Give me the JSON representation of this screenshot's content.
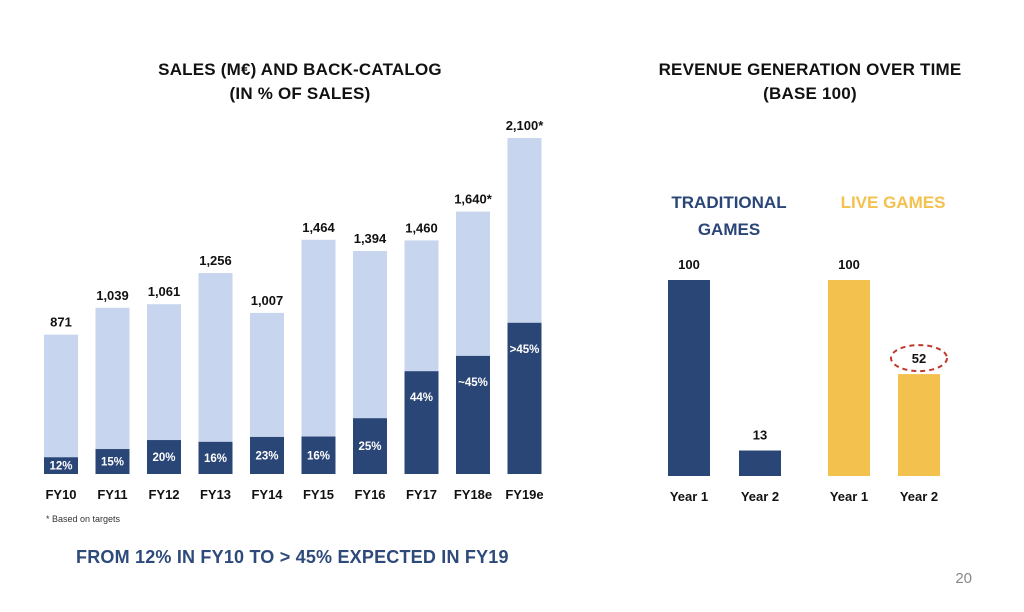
{
  "colors": {
    "light_blue": "#c7d6ee",
    "navy": "#2a4676",
    "gold": "#f3c14e",
    "red_dashed": "#c0392b",
    "text_dark": "#111111"
  },
  "chart_data": [
    {
      "type": "bar",
      "stacked": true,
      "title": "SALES (M€) AND BACK-CATALOG",
      "subtitle": "(IN % OF SALES)",
      "categories": [
        "FY10",
        "FY11",
        "FY12",
        "FY13",
        "FY14",
        "FY15",
        "FY16",
        "FY17",
        "FY18e",
        "FY19e"
      ],
      "total_labels": [
        "871",
        "1,039",
        "1,061",
        "1,256",
        "1,007",
        "1,464",
        "1,394",
        "1,460",
        "1,640*",
        "2,100*"
      ],
      "totals": [
        871,
        1039,
        1061,
        1256,
        1007,
        1464,
        1394,
        1460,
        1640,
        2100
      ],
      "back_catalog_labels": [
        "12%",
        "15%",
        "20%",
        "16%",
        "23%",
        "16%",
        "25%",
        "44%",
        "~45%",
        ">45%"
      ],
      "back_catalog_share": [
        0.12,
        0.15,
        0.2,
        0.16,
        0.23,
        0.16,
        0.25,
        0.44,
        0.45,
        0.45
      ],
      "footnote": "* Based on targets",
      "grid": false
    },
    {
      "type": "bar",
      "title": "REVENUE GENERATION OVER TIME",
      "subtitle": "(BASE 100)",
      "groups": [
        {
          "name": "TRADITIONAL GAMES",
          "name_lines": [
            "TRADITIONAL",
            "GAMES"
          ],
          "color": "#2a4676",
          "categories": [
            "Year 1",
            "Year 2"
          ],
          "values": [
            100,
            13
          ]
        },
        {
          "name": "LIVE GAMES",
          "name_lines": [
            "LIVE GAMES"
          ],
          "color": "#f3c14e",
          "categories": [
            "Year 1",
            "Year 2"
          ],
          "values": [
            100,
            52
          ],
          "highlight_index": 1
        }
      ],
      "grid": false
    }
  ],
  "conclusion": "FROM 12% IN FY10 TO > 45% EXPECTED IN FY19",
  "page_number": "20"
}
